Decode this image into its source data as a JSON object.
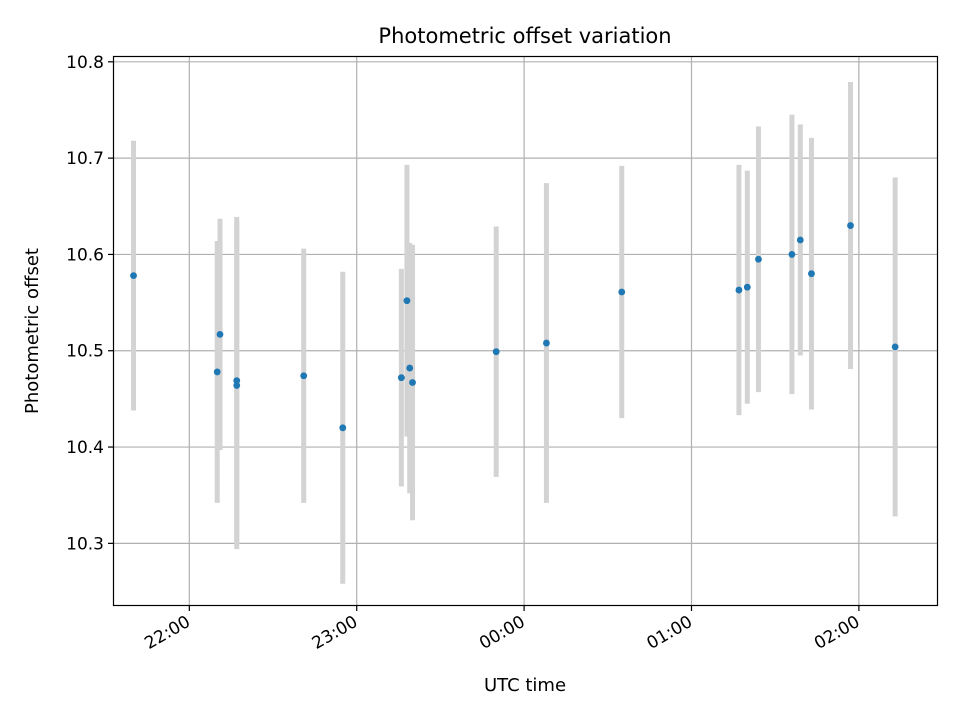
{
  "chart_data": {
    "type": "scatter",
    "title": "Photometric offset variation",
    "xlabel": "UTC time",
    "ylabel": "Photometric offset",
    "x_axis_type": "time",
    "xlim": [
      "21:33",
      "02:28"
    ],
    "ylim": [
      10.236,
      10.805
    ],
    "x_ticks": [
      "22:00",
      "23:00",
      "00:00",
      "01:00",
      "02:00"
    ],
    "y_ticks": [
      10.3,
      10.4,
      10.5,
      10.6,
      10.7,
      10.8
    ],
    "grid": true,
    "legend": "none",
    "colors": {
      "point": "#1f77b4",
      "errorbar": "#d3d3d3",
      "grid": "#b0b0b0"
    },
    "points": [
      {
        "t": "21:40",
        "y": 10.578,
        "yerr": 0.14
      },
      {
        "t": "22:10",
        "y": 10.478,
        "yerr": 0.136
      },
      {
        "t": "22:11",
        "y": 10.517,
        "yerr": 0.12
      },
      {
        "t": "22:17",
        "y": 10.464,
        "yerr": 0.17
      },
      {
        "t": "22:17",
        "y": 10.469,
        "yerr": 0.17
      },
      {
        "t": "22:41",
        "y": 10.474,
        "yerr": 0.132
      },
      {
        "t": "22:55",
        "y": 10.42,
        "yerr": 0.162
      },
      {
        "t": "23:16",
        "y": 10.472,
        "yerr": 0.113
      },
      {
        "t": "23:18",
        "y": 10.552,
        "yerr": 0.141
      },
      {
        "t": "23:19",
        "y": 10.482,
        "yerr": 0.13
      },
      {
        "t": "23:20",
        "y": 10.467,
        "yerr": 0.143
      },
      {
        "t": "23:50",
        "y": 10.499,
        "yerr": 0.13
      },
      {
        "t": "00:08",
        "y": 10.508,
        "yerr": 0.166
      },
      {
        "t": "00:35",
        "y": 10.561,
        "yerr": 0.131
      },
      {
        "t": "01:17",
        "y": 10.563,
        "yerr": 0.13
      },
      {
        "t": "01:20",
        "y": 10.566,
        "yerr": 0.121
      },
      {
        "t": "01:24",
        "y": 10.595,
        "yerr": 0.138
      },
      {
        "t": "01:36",
        "y": 10.6,
        "yerr": 0.145
      },
      {
        "t": "01:39",
        "y": 10.615,
        "yerr": 0.12
      },
      {
        "t": "01:43",
        "y": 10.58,
        "yerr": 0.141
      },
      {
        "t": "01:57",
        "y": 10.63,
        "yerr": 0.149
      },
      {
        "t": "02:13",
        "y": 10.504,
        "yerr": 0.176
      }
    ]
  }
}
